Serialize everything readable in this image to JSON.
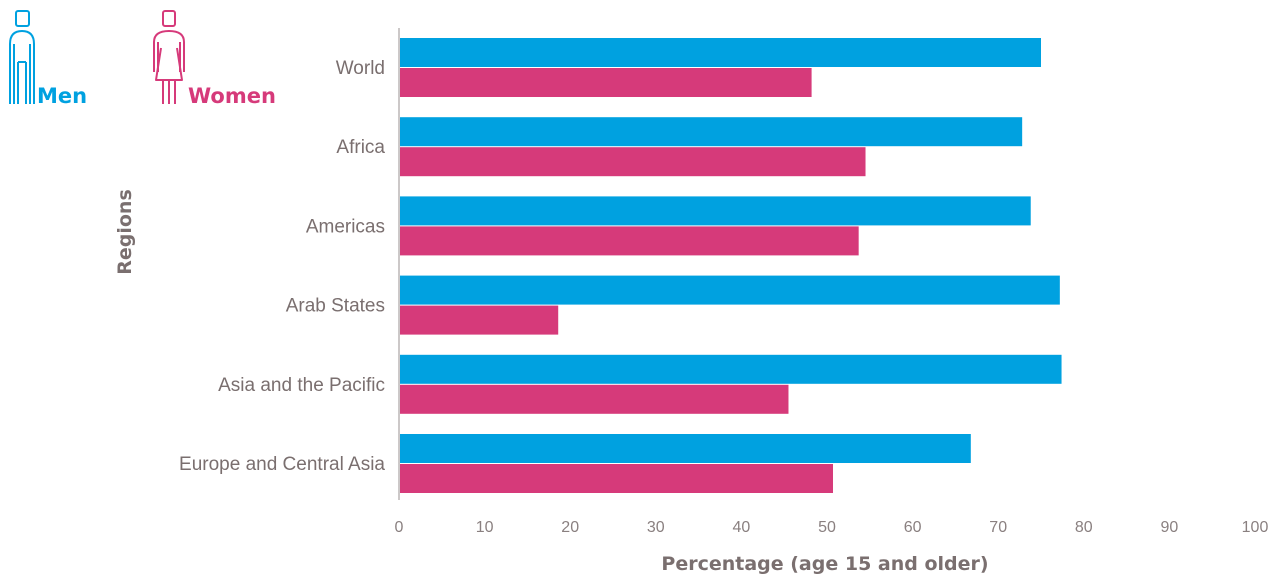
{
  "chart_data": {
    "type": "bar",
    "orientation": "horizontal",
    "categories": [
      "World",
      "Africa",
      "Americas",
      "Arab States",
      "Asia and the Pacific",
      "Europe and Central Asia"
    ],
    "series": [
      {
        "name": "Men",
        "color": "#00a1e0",
        "icon": "man-icon",
        "values": [
          75.0,
          72.8,
          73.8,
          77.2,
          77.4,
          66.8
        ]
      },
      {
        "name": "Women",
        "color": "#d63a7a",
        "icon": "woman-icon",
        "values": [
          48.2,
          54.5,
          53.7,
          18.6,
          45.5,
          50.7
        ]
      }
    ],
    "xlabel": "Percentage (age 15 and older)",
    "ylabel": "Regions",
    "xlim": [
      0,
      100
    ],
    "xticks": [
      0,
      10,
      20,
      30,
      40,
      50,
      60,
      70,
      80,
      90,
      100
    ],
    "grid": false,
    "legend_placement": "top-left"
  }
}
